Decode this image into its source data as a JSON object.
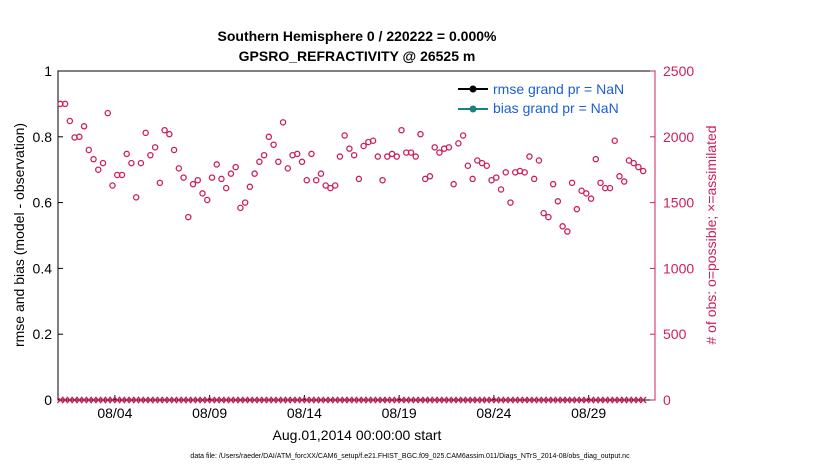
{
  "chart_data": {
    "type": "scatter",
    "title_line1": "Southern Hemisphere 0 / 220222 = 0.000%",
    "title_line2": "GPSRO_REFRACTIVITY @ 26525 m",
    "xlabel": "Aug.01,2014 00:00:00 start",
    "ylabel_left": "rmse and bias (model - observation)",
    "ylabel_right": "# of obs: o=possible; ×=assimilated",
    "footer": "data file: /Users/raeder/DAI/ATM_forcXX/CAM6_setup/f.e21.FHIST_BGC.f09_025.CAM6assim.011/Diags_NTrS_2014-08/obs_diag_output.nc",
    "xlim": [
      0,
      31.5
    ],
    "ylim_left": [
      0,
      1
    ],
    "ylim_right": [
      0,
      2500
    ],
    "x_ticks": [
      {
        "x": 3,
        "label": "08/04"
      },
      {
        "x": 8,
        "label": "08/09"
      },
      {
        "x": 13,
        "label": "08/14"
      },
      {
        "x": 18,
        "label": "08/19"
      },
      {
        "x": 23,
        "label": "08/24"
      },
      {
        "x": 28,
        "label": "08/29"
      }
    ],
    "y_ticks_left": [
      "0",
      "0.2",
      "0.4",
      "0.6",
      "0.8",
      "1"
    ],
    "y_ticks_left_values": [
      0,
      0.2,
      0.4,
      0.6,
      0.8,
      1
    ],
    "y_ticks_right": [
      "0",
      "500",
      "1000",
      "1500",
      "2000",
      "2500"
    ],
    "y_ticks_right_values": [
      0,
      500,
      1000,
      1500,
      2000,
      2500
    ],
    "legend": {
      "placement": "top-right",
      "entries": [
        {
          "label": "rmse grand pr = NaN",
          "color": "#000000"
        },
        {
          "label": "bias grand pr = NaN",
          "color": "#1a8080"
        }
      ]
    },
    "colors": {
      "obs": "#cc1f5c",
      "axis": "#000000",
      "right_axis": "#cc1f5c",
      "legend_text": "#1a5fd6"
    },
    "series": [
      {
        "name": "possible",
        "marker": "circle",
        "x": [
          0.125,
          0.375,
          0.625,
          0.875,
          1.125,
          1.375,
          1.625,
          1.875,
          2.125,
          2.375,
          2.625,
          2.875,
          3.125,
          3.375,
          3.625,
          3.875,
          4.125,
          4.375,
          4.625,
          4.875,
          5.125,
          5.375,
          5.625,
          5.875,
          6.125,
          6.375,
          6.625,
          6.875,
          7.125,
          7.375,
          7.625,
          7.875,
          8.125,
          8.375,
          8.625,
          8.875,
          9.125,
          9.375,
          9.625,
          9.875,
          10.125,
          10.375,
          10.625,
          10.875,
          11.125,
          11.375,
          11.625,
          11.875,
          12.125,
          12.375,
          12.625,
          12.875,
          13.125,
          13.375,
          13.625,
          13.875,
          14.125,
          14.375,
          14.625,
          14.875,
          15.125,
          15.375,
          15.625,
          15.875,
          16.125,
          16.375,
          16.625,
          16.875,
          17.125,
          17.375,
          17.625,
          17.875,
          18.125,
          18.375,
          18.625,
          18.875,
          19.125,
          19.375,
          19.625,
          19.875,
          20.125,
          20.375,
          20.625,
          20.875,
          21.125,
          21.375,
          21.625,
          21.875,
          22.125,
          22.375,
          22.625,
          22.875,
          23.125,
          23.375,
          23.625,
          23.875,
          24.125,
          24.375,
          24.625,
          24.875,
          25.125,
          25.375,
          25.625,
          25.875,
          26.125,
          26.375,
          26.625,
          26.875,
          27.125,
          27.375,
          27.625,
          27.875,
          28.125,
          28.375,
          28.625,
          28.875,
          29.125,
          29.375,
          29.625,
          29.875,
          30.125,
          30.375,
          30.625,
          30.875
        ],
        "y": [
          2250,
          2250,
          2120,
          1995,
          2000,
          2080,
          1900,
          1830,
          1750,
          1800,
          2180,
          1630,
          1710,
          1710,
          1870,
          1800,
          1540,
          1800,
          2030,
          1860,
          1920,
          1650,
          2050,
          2020,
          1900,
          1760,
          1690,
          1390,
          1640,
          1670,
          1570,
          1520,
          1690,
          1790,
          1680,
          1610,
          1720,
          1770,
          1460,
          1500,
          1620,
          1720,
          1810,
          1860,
          2000,
          1940,
          1810,
          2110,
          1760,
          1860,
          1870,
          1810,
          1670,
          1870,
          1670,
          1720,
          1630,
          1610,
          1630,
          1850,
          2010,
          1910,
          1860,
          1680,
          1930,
          1960,
          1970,
          1850,
          1670,
          1850,
          1870,
          1850,
          2050,
          1880,
          1880,
          1850,
          2020,
          1680,
          1700,
          1920,
          1880,
          1910,
          1920,
          1640,
          1950,
          2010,
          1780,
          1680,
          1820,
          1800,
          1780,
          1670,
          1690,
          1600,
          1730,
          1500,
          1730,
          1740,
          1730,
          1850,
          1680,
          1820,
          1420,
          1390,
          1640,
          1510,
          1320,
          1280,
          1650,
          1450,
          1590,
          1570,
          1530,
          1830,
          1650,
          1610,
          1610,
          1970,
          1700,
          1660,
          1820,
          1800,
          1770,
          1740
        ]
      },
      {
        "name": "assimilated",
        "marker": "cross",
        "x": [
          0.125,
          0.375,
          0.625,
          0.875,
          1.125,
          1.375,
          1.625,
          1.875,
          2.125,
          2.375,
          2.625,
          2.875,
          3.125,
          3.375,
          3.625,
          3.875,
          4.125,
          4.375,
          4.625,
          4.875,
          5.125,
          5.375,
          5.625,
          5.875,
          6.125,
          6.375,
          6.625,
          6.875,
          7.125,
          7.375,
          7.625,
          7.875,
          8.125,
          8.375,
          8.625,
          8.875,
          9.125,
          9.375,
          9.625,
          9.875,
          10.125,
          10.375,
          10.625,
          10.875,
          11.125,
          11.375,
          11.625,
          11.875,
          12.125,
          12.375,
          12.625,
          12.875,
          13.125,
          13.375,
          13.625,
          13.875,
          14.125,
          14.375,
          14.625,
          14.875,
          15.125,
          15.375,
          15.625,
          15.875,
          16.125,
          16.375,
          16.625,
          16.875,
          17.125,
          17.375,
          17.625,
          17.875,
          18.125,
          18.375,
          18.625,
          18.875,
          19.125,
          19.375,
          19.625,
          19.875,
          20.125,
          20.375,
          20.625,
          20.875,
          21.125,
          21.375,
          21.625,
          21.875,
          22.125,
          22.375,
          22.625,
          22.875,
          23.125,
          23.375,
          23.625,
          23.875,
          24.125,
          24.375,
          24.625,
          24.875,
          25.125,
          25.375,
          25.625,
          25.875,
          26.125,
          26.375,
          26.625,
          26.875,
          27.125,
          27.375,
          27.625,
          27.875,
          28.125,
          28.375,
          28.625,
          28.875,
          29.125,
          29.375,
          29.625,
          29.875,
          30.125,
          30.375,
          30.625,
          30.875
        ],
        "y": [
          0,
          0,
          0,
          0,
          0,
          0,
          0,
          0,
          0,
          0,
          0,
          0,
          0,
          0,
          0,
          0,
          0,
          0,
          0,
          0,
          0,
          0,
          0,
          0,
          0,
          0,
          0,
          0,
          0,
          0,
          0,
          0,
          0,
          0,
          0,
          0,
          0,
          0,
          0,
          0,
          0,
          0,
          0,
          0,
          0,
          0,
          0,
          0,
          0,
          0,
          0,
          0,
          0,
          0,
          0,
          0,
          0,
          0,
          0,
          0,
          0,
          0,
          0,
          0,
          0,
          0,
          0,
          0,
          0,
          0,
          0,
          0,
          0,
          0,
          0,
          0,
          0,
          0,
          0,
          0,
          0,
          0,
          0,
          0,
          0,
          0,
          0,
          0,
          0,
          0,
          0,
          0,
          0,
          0,
          0,
          0,
          0,
          0,
          0,
          0,
          0,
          0,
          0,
          0,
          0,
          0,
          0,
          0,
          0,
          0,
          0,
          0,
          0,
          0,
          0,
          0,
          0,
          0,
          0,
          0,
          0,
          0,
          0,
          0
        ]
      }
    ]
  }
}
